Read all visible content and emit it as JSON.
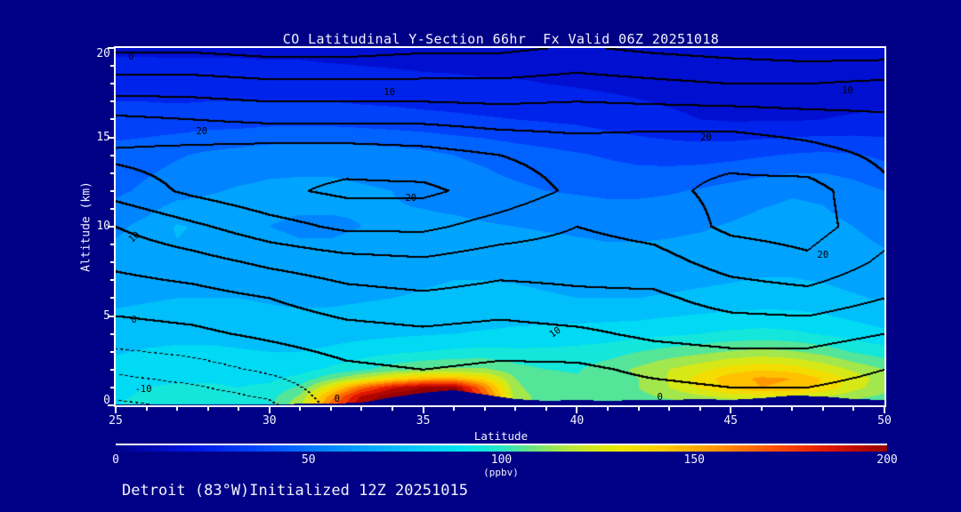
{
  "title": {
    "text": "CO Latitudinal Y-Section 66hr  Fx Valid 06Z 20251018"
  },
  "footer": {
    "text": "Detroit (83°W)Initialized 12Z 20251015"
  },
  "axes": {
    "x_label": "Latitude",
    "y_label": "Altitude (km)",
    "x_range": [
      25,
      50
    ],
    "y_range": [
      0,
      20
    ],
    "x_ticks": [
      25,
      30,
      35,
      40,
      45,
      50
    ],
    "y_ticks": [
      0,
      5,
      10,
      15,
      20
    ],
    "x_minor_step": 1,
    "y_minor_step": 1
  },
  "colorbar": {
    "values": [
      0,
      50,
      100,
      150,
      200
    ],
    "labels": [
      "0",
      "50",
      "100",
      "150",
      "200"
    ],
    "unit": "(ppbv)",
    "range": [
      0,
      200
    ]
  },
  "colors": {
    "background": "#000087",
    "frame": "#ffffff",
    "text": "#f2f2ff",
    "contour_line": "#000000"
  },
  "chart_data": {
    "type": "heatmap",
    "subtype": "filled-contour-cross-section with overlaid line contours",
    "title": "CO Latitudinal Y-Section 66hr  Fx Valid 06Z 20251018",
    "xlabel": "Latitude",
    "ylabel": "Altitude (km)",
    "xlim": [
      25,
      50
    ],
    "ylim": [
      0,
      20
    ],
    "fill_units": "ppbv",
    "fill_range": [
      0,
      200
    ],
    "quantize_step": 10,
    "lats": [
      25,
      26,
      27,
      28,
      29,
      30,
      31,
      32,
      33,
      34,
      35,
      36,
      37,
      38,
      39,
      40,
      41,
      42,
      43,
      44,
      45,
      46,
      47,
      48,
      49,
      50
    ],
    "fill_alts": [
      0,
      0.5,
      1,
      1.5,
      2,
      3,
      4,
      6,
      8,
      10,
      12,
      14,
      16,
      18,
      20
    ],
    "fill_values": [
      [
        90,
        92,
        93,
        93,
        93,
        98,
        118,
        165,
        200,
        212,
        216,
        215,
        180,
        115,
        105,
        102,
        102,
        103,
        105,
        106,
        107,
        109,
        110,
        108,
        104,
        100
      ],
      [
        89,
        91,
        92,
        92,
        92,
        96,
        112,
        155,
        192,
        207,
        212,
        211,
        170,
        115,
        105,
        103,
        104,
        107,
        112,
        118,
        124,
        128,
        127,
        121,
        113,
        108
      ],
      [
        88,
        90,
        91,
        91,
        90,
        92,
        102,
        132,
        165,
        188,
        200,
        202,
        160,
        112,
        104,
        102,
        104,
        110,
        120,
        132,
        143,
        150,
        148,
        138,
        124,
        113
      ],
      [
        86,
        88,
        89,
        89,
        88,
        88,
        93,
        107,
        122,
        136,
        146,
        148,
        135,
        110,
        103,
        101,
        103,
        110,
        121,
        134,
        146,
        152,
        150,
        139,
        126,
        115
      ],
      [
        84,
        86,
        87,
        87,
        86,
        85,
        87,
        92,
        98,
        105,
        110,
        112,
        112,
        104,
        100,
        99,
        106,
        112,
        120,
        127,
        135,
        139,
        136,
        128,
        118,
        110
      ],
      [
        79,
        81,
        82,
        82,
        81,
        80,
        80,
        82,
        85,
        88,
        90,
        92,
        93,
        92,
        92,
        93,
        95,
        100,
        104,
        107,
        111,
        113,
        111,
        106,
        99,
        94
      ],
      [
        75,
        76,
        77,
        77,
        76,
        75,
        75,
        76,
        77,
        78,
        79,
        80,
        81,
        82,
        83,
        84,
        85,
        86,
        88,
        90,
        92,
        93,
        92,
        89,
        85,
        82
      ],
      [
        68,
        69,
        70,
        70,
        70,
        69,
        68,
        68,
        69,
        70,
        71,
        72,
        72,
        72,
        71,
        70,
        70,
        70,
        71,
        72,
        73,
        74,
        74,
        73,
        71,
        69
      ],
      [
        64,
        66,
        68,
        67,
        65,
        63,
        62,
        62,
        63,
        65,
        67,
        68,
        68,
        67,
        66,
        65,
        64,
        64,
        64,
        65,
        66,
        67,
        67,
        66,
        64,
        62
      ],
      [
        58,
        63,
        71,
        68,
        63,
        60,
        59,
        59,
        60,
        61,
        62,
        62,
        61,
        60,
        59,
        58,
        57,
        57,
        58,
        59,
        61,
        63,
        64,
        63,
        60,
        57
      ],
      [
        48,
        52,
        56,
        59,
        61,
        62,
        62,
        62,
        61,
        60,
        58,
        56,
        54,
        52,
        50,
        49,
        48,
        48,
        49,
        51,
        54,
        57,
        59,
        58,
        54,
        50
      ],
      [
        44,
        46,
        49,
        52,
        54,
        56,
        57,
        57,
        56,
        55,
        53,
        50,
        48,
        45,
        43,
        41,
        39,
        37,
        36,
        36,
        37,
        39,
        41,
        42,
        41,
        38
      ],
      [
        34,
        34,
        34,
        35,
        35,
        36,
        36,
        36,
        35,
        34,
        33,
        32,
        31,
        30,
        29,
        28,
        26,
        24,
        22,
        20,
        19,
        19,
        19,
        20,
        21,
        22
      ],
      [
        26,
        26,
        25,
        25,
        25,
        24,
        24,
        24,
        23,
        23,
        22,
        22,
        21,
        21,
        20,
        19,
        18,
        17,
        16,
        15,
        15,
        15,
        15,
        15,
        15,
        15
      ],
      [
        18,
        18,
        18,
        18,
        18,
        18,
        18,
        17,
        17,
        16,
        16,
        15,
        15,
        14,
        14,
        14,
        13,
        13,
        13,
        12,
        12,
        12,
        12,
        12,
        12,
        12
      ]
    ],
    "colormap_stops": [
      [
        0,
        0,
        0,
        140
      ],
      [
        20,
        0,
        20,
        230
      ],
      [
        40,
        0,
        80,
        255
      ],
      [
        60,
        0,
        150,
        255
      ],
      [
        80,
        0,
        205,
        250
      ],
      [
        90,
        0,
        230,
        238
      ],
      [
        100,
        40,
        230,
        200
      ],
      [
        108,
        110,
        228,
        125
      ],
      [
        118,
        185,
        232,
        55
      ],
      [
        130,
        235,
        233,
        0
      ],
      [
        142,
        255,
        205,
        0
      ],
      [
        155,
        255,
        152,
        0
      ],
      [
        170,
        255,
        82,
        0
      ],
      [
        185,
        222,
        22,
        0
      ],
      [
        200,
        150,
        0,
        0
      ]
    ],
    "terrain_alts": [
      0.05,
      0.05,
      0.05,
      0.05,
      0.05,
      0.05,
      0.08,
      0.1,
      0.15,
      0.45,
      0.7,
      0.85,
      0.6,
      0.35,
      0.25,
      0.3,
      0.25,
      0.3,
      0.3,
      0.35,
      0.3,
      0.4,
      0.55,
      0.5,
      0.35,
      0.3
    ],
    "line_lats": [
      25,
      27.5,
      30,
      32.5,
      35,
      37.5,
      40,
      42.5,
      45,
      47.5,
      50
    ],
    "line_alts": [
      0,
      2,
      4,
      6,
      8,
      10,
      12,
      14,
      16,
      18,
      20
    ],
    "line_values": [
      [
        -16,
        -14,
        -11,
        -2,
        0,
        -2,
        -3,
        -3,
        -2,
        -2,
        -3
      ],
      [
        -9,
        -7,
        -4,
        -1,
        0,
        -1,
        -1,
        1,
        2,
        2,
        0
      ],
      [
        -2,
        -1,
        1,
        3,
        4,
        3,
        4,
        6,
        7,
        7,
        5
      ],
      [
        2,
        3,
        5,
        8,
        9,
        8,
        9,
        9,
        12,
        13,
        10
      ],
      [
        6,
        8,
        11,
        13,
        14,
        12,
        12,
        13,
        17,
        19,
        14
      ],
      [
        10,
        14,
        18,
        21,
        21,
        18,
        15,
        17,
        21,
        22,
        17
      ],
      [
        17,
        21,
        24,
        26,
        26,
        23,
        19,
        19,
        21,
        22,
        16
      ],
      [
        21,
        22,
        23,
        23,
        22,
        20,
        18,
        19,
        19,
        17,
        14
      ],
      [
        16,
        15,
        14,
        14,
        14,
        13,
        13,
        13,
        13,
        12,
        11
      ],
      [
        7,
        7,
        6,
        6,
        6,
        6,
        7,
        6,
        5,
        5,
        6
      ],
      [
        -1,
        -1,
        -2,
        -2,
        -1,
        -1,
        0.5,
        -1,
        -2,
        -3,
        -3
      ]
    ],
    "line_levels": [
      -15,
      -10,
      -5,
      0,
      5,
      10,
      15,
      20,
      25
    ],
    "negative_line_style": "dotted",
    "contour_labels": [
      {
        "text": "0",
        "lat": 25.5,
        "alt": 19.5,
        "rot": 0
      },
      {
        "text": "10",
        "lat": 33.9,
        "alt": 17.5,
        "rot": 0
      },
      {
        "text": "10",
        "lat": 48.8,
        "alt": 17.6,
        "rot": 0
      },
      {
        "text": "20",
        "lat": 27.8,
        "alt": 15.3,
        "rot": 0
      },
      {
        "text": "20",
        "lat": 44.2,
        "alt": 15.0,
        "rot": 0
      },
      {
        "text": "20",
        "lat": 34.6,
        "alt": 11.6,
        "rot": 0
      },
      {
        "text": "20",
        "lat": 48.0,
        "alt": 8.4,
        "rot": 0
      },
      {
        "text": "10",
        "lat": 25.6,
        "alt": 9.4,
        "rot": -40
      },
      {
        "text": "10",
        "lat": 39.3,
        "alt": 4.1,
        "rot": -35
      },
      {
        "text": "0",
        "lat": 25.6,
        "alt": 4.8,
        "rot": 0
      },
      {
        "text": "-10",
        "lat": 25.9,
        "alt": 0.9,
        "rot": 0
      },
      {
        "text": "0",
        "lat": 32.2,
        "alt": 0.35,
        "rot": 0
      },
      {
        "text": "0",
        "lat": 42.7,
        "alt": 0.45,
        "rot": 0
      }
    ]
  }
}
